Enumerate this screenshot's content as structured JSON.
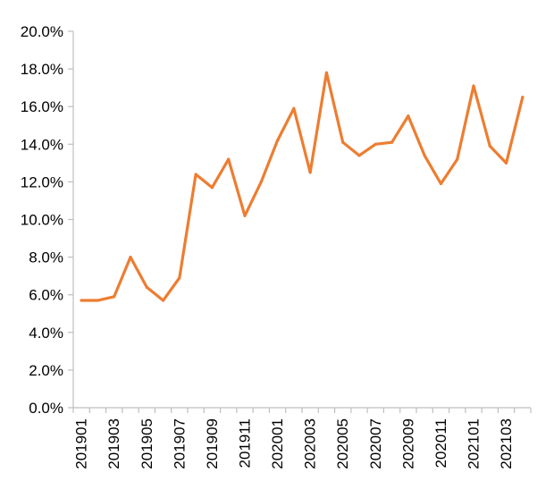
{
  "chart_data": {
    "type": "line",
    "title": "",
    "xlabel": "",
    "ylabel": "",
    "x": [
      "201901",
      "201902",
      "201903",
      "201904",
      "201905",
      "201906",
      "201907",
      "201908",
      "201909",
      "201910",
      "201911",
      "201912",
      "202001",
      "202002",
      "202003",
      "202004",
      "202005",
      "202006",
      "202007",
      "202008",
      "202009",
      "202010",
      "202011",
      "202012",
      "202101",
      "202102",
      "202103",
      "202104"
    ],
    "x_tick_labels": [
      "201901",
      "201903",
      "201905",
      "201907",
      "201909",
      "201911",
      "202001",
      "202003",
      "202005",
      "202007",
      "202009",
      "202011",
      "202101",
      "202103"
    ],
    "y_ticks": [
      "0.0%",
      "2.0%",
      "4.0%",
      "6.0%",
      "8.0%",
      "10.0%",
      "12.0%",
      "14.0%",
      "16.0%",
      "18.0%",
      "20.0%"
    ],
    "ylim": [
      0,
      20
    ],
    "y_unit": "%",
    "grid": false,
    "legend": "none",
    "series": [
      {
        "color": "#ED7D31",
        "values": [
          5.7,
          5.7,
          5.9,
          8.0,
          6.4,
          5.7,
          6.9,
          12.4,
          11.7,
          13.2,
          10.2,
          12.0,
          14.2,
          15.9,
          12.5,
          17.8,
          14.1,
          13.4,
          14.0,
          14.1,
          15.5,
          13.4,
          11.9,
          13.2,
          17.1,
          13.9,
          13.0,
          16.5
        ]
      }
    ]
  }
}
